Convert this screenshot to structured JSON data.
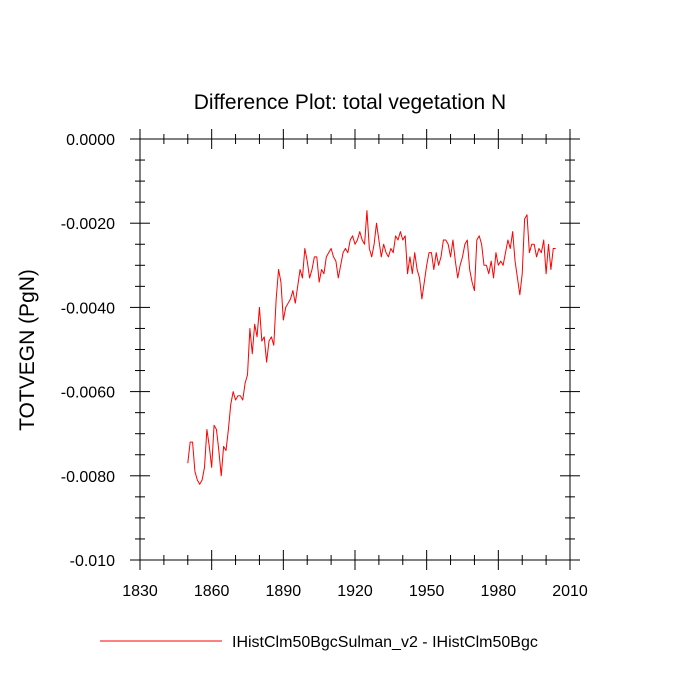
{
  "chart_data": {
    "type": "line",
    "title": "Difference Plot: total vegetation N",
    "xlabel": "",
    "ylabel": "TOTVEGN  (PgN)",
    "xlim": [
      1830,
      2010
    ],
    "ylim": [
      -0.01,
      0.0
    ],
    "x_ticks": [
      1830,
      1860,
      1890,
      1920,
      1950,
      1980,
      2010
    ],
    "x_tick_labels": [
      "1830",
      "1860",
      "1890",
      "1920",
      "1950",
      "1980",
      "2010"
    ],
    "y_ticks": [
      0.0,
      -0.002,
      -0.004,
      -0.006,
      -0.008,
      -0.01
    ],
    "y_tick_labels": [
      "0.0000",
      "-0.0020",
      "-0.0040",
      "-0.0060",
      "-0.0080",
      "-0.010"
    ],
    "grid": false,
    "legend_position": "bottom",
    "series": [
      {
        "name": "IHistClm50BgcSulman_v2 - IHistClm50Bgc",
        "color": "#ff0000",
        "x_start": 1850,
        "x_step": 1,
        "values": [
          -0.0077,
          -0.0072,
          -0.0072,
          -0.0079,
          -0.0081,
          -0.0082,
          -0.0081,
          -0.0078,
          -0.0069,
          -0.0073,
          -0.0078,
          -0.0068,
          -0.0069,
          -0.0074,
          -0.008,
          -0.0073,
          -0.0074,
          -0.0069,
          -0.0063,
          -0.006,
          -0.0062,
          -0.0061,
          -0.0061,
          -0.0062,
          -0.0058,
          -0.0056,
          -0.0045,
          -0.0051,
          -0.0044,
          -0.0047,
          -0.004,
          -0.0048,
          -0.0047,
          -0.0053,
          -0.0048,
          -0.0047,
          -0.0049,
          -0.0038,
          -0.0031,
          -0.0034,
          -0.0043,
          -0.004,
          -0.0039,
          -0.0038,
          -0.0036,
          -0.0039,
          -0.0035,
          -0.0031,
          -0.0033,
          -0.0026,
          -0.0029,
          -0.0033,
          -0.0031,
          -0.0028,
          -0.0028,
          -0.0034,
          -0.0031,
          -0.0032,
          -0.0028,
          -0.0027,
          -0.0026,
          -0.0028,
          -0.0029,
          -0.0033,
          -0.003,
          -0.0027,
          -0.0026,
          -0.0027,
          -0.0024,
          -0.0023,
          -0.0025,
          -0.0024,
          -0.0022,
          -0.0024,
          -0.0025,
          -0.0017,
          -0.0026,
          -0.0028,
          -0.0025,
          -0.002,
          -0.0024,
          -0.0028,
          -0.0025,
          -0.0027,
          -0.0028,
          -0.0026,
          -0.0027,
          -0.0023,
          -0.0024,
          -0.0022,
          -0.0024,
          -0.0023,
          -0.0032,
          -0.0028,
          -0.0032,
          -0.0027,
          -0.0031,
          -0.0033,
          -0.0038,
          -0.0034,
          -0.003,
          -0.0027,
          -0.0027,
          -0.0031,
          -0.0027,
          -0.003,
          -0.0028,
          -0.0024,
          -0.0024,
          -0.0025,
          -0.0028,
          -0.0024,
          -0.0029,
          -0.0033,
          -0.003,
          -0.0028,
          -0.0025,
          -0.0024,
          -0.0031,
          -0.0034,
          -0.0036,
          -0.0024,
          -0.0023,
          -0.0025,
          -0.003,
          -0.003,
          -0.0032,
          -0.0029,
          -0.0033,
          -0.0027,
          -0.003,
          -0.0029,
          -0.003,
          -0.0027,
          -0.0024,
          -0.0026,
          -0.0022,
          -0.0029,
          -0.0033,
          -0.0037,
          -0.0032,
          -0.0019,
          -0.0018,
          -0.0027,
          -0.0025,
          -0.0025,
          -0.0028,
          -0.0026,
          -0.0027,
          -0.0024,
          -0.0032,
          -0.0025,
          -0.0031,
          -0.0026,
          -0.0026
        ]
      }
    ]
  }
}
